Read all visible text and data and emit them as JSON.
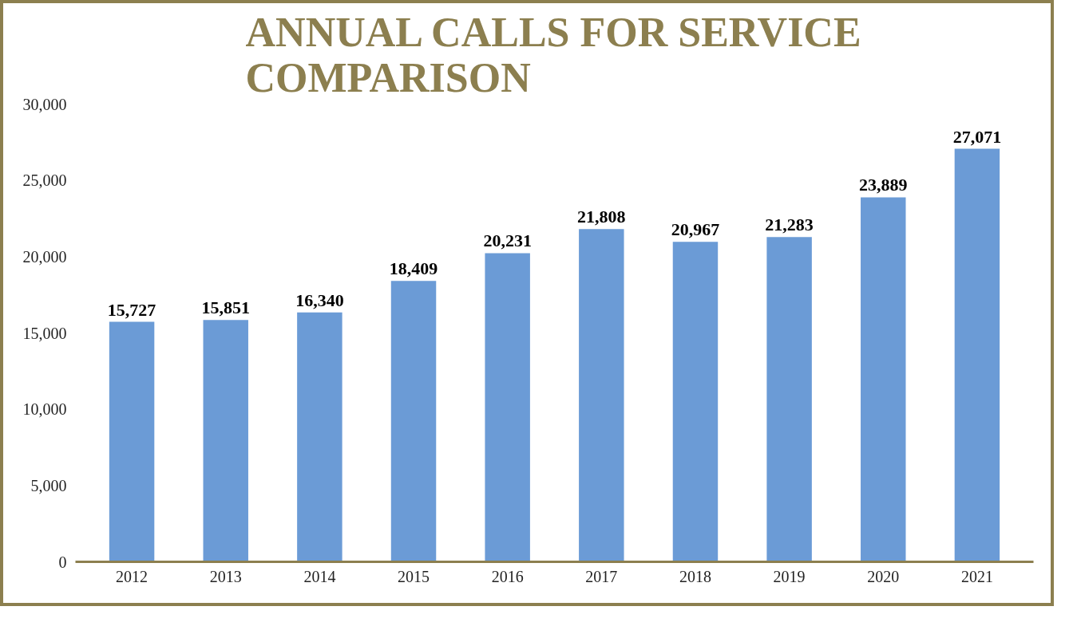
{
  "chart_data": {
    "type": "bar",
    "title": "ANNUAL CALLS FOR SERVICE COMPARISON",
    "categories": [
      "2012",
      "2013",
      "2014",
      "2015",
      "2016",
      "2017",
      "2018",
      "2019",
      "2020",
      "2021"
    ],
    "values": [
      15727,
      15851,
      16340,
      18409,
      20231,
      21808,
      20967,
      21283,
      23889,
      27071
    ],
    "color": "#6b9bd6",
    "ylim": [
      0,
      30000
    ],
    "yticks": [
      0,
      {
        "value": 5000,
        "label": "5,000"
      },
      {
        "value": 10000,
        "label": "10,000"
      },
      {
        "value": 15000,
        "label": "15,000"
      },
      {
        "value": 20000,
        "label": "20,000"
      },
      {
        "value": 25000,
        "label": "25,000"
      },
      {
        "value": 30000,
        "label": "30,000"
      }
    ],
    "value_labels": [
      "15,727",
      "15,851",
      "16,340",
      "18,409",
      "20,231",
      "21,808",
      "20,967",
      "21,283",
      "23,889",
      "27,071"
    ],
    "grid": false
  }
}
